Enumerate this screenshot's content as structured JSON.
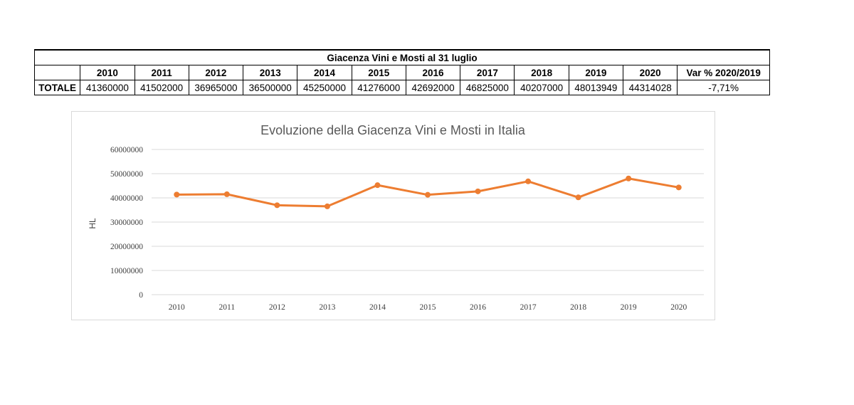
{
  "table": {
    "title": "Giacenza Vini e Mosti al 31 luglio",
    "years": [
      "2010",
      "2011",
      "2012",
      "2013",
      "2014",
      "2015",
      "2016",
      "2017",
      "2018",
      "2019",
      "2020"
    ],
    "var_header": "Var % 2020/2019",
    "row_label": "TOTALE",
    "values": [
      "41360000",
      "41502000",
      "36965000",
      "36500000",
      "45250000",
      "41276000",
      "42692000",
      "46825000",
      "40207000",
      "48013949",
      "44314028"
    ],
    "var_value": "-7,71%"
  },
  "chart_data": {
    "type": "line",
    "title": "Evoluzione della Giacenza Vini e Mosti in Italia",
    "xlabel": "",
    "ylabel": "HL",
    "categories": [
      "2010",
      "2011",
      "2012",
      "2013",
      "2014",
      "2015",
      "2016",
      "2017",
      "2018",
      "2019",
      "2020"
    ],
    "series": [
      {
        "values": [
          41360000,
          41502000,
          36965000,
          36500000,
          45250000,
          41276000,
          42692000,
          46825000,
          40207000,
          48013949,
          44314028
        ]
      }
    ],
    "ylim": [
      0,
      60000000
    ],
    "yticks": [
      "0",
      "10000000",
      "20000000",
      "30000000",
      "40000000",
      "50000000",
      "60000000"
    ],
    "grid": true,
    "legend": "none",
    "line_color": "#ed7d31"
  }
}
